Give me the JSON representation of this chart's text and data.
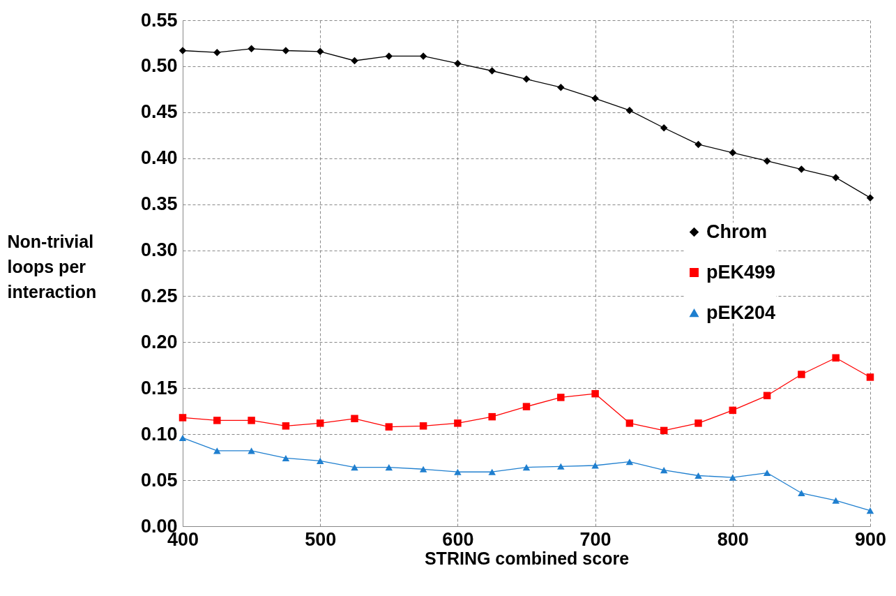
{
  "chart_data": {
    "type": "line",
    "xlabel": "STRING combined score",
    "ylabel": "Non-trivial loops per interaction",
    "x": [
      400,
      425,
      450,
      475,
      500,
      525,
      550,
      575,
      600,
      625,
      650,
      675,
      700,
      725,
      750,
      775,
      800,
      825,
      850,
      875,
      900
    ],
    "series": [
      {
        "name": "Chrom",
        "color": "#000000",
        "marker": "diamond",
        "values": [
          0.517,
          0.515,
          0.519,
          0.517,
          0.516,
          0.506,
          0.511,
          0.511,
          0.503,
          0.495,
          0.486,
          0.477,
          0.465,
          0.452,
          0.433,
          0.415,
          0.406,
          0.397,
          0.388,
          0.379,
          0.357
        ]
      },
      {
        "name": "pEK499",
        "color": "#ff0000",
        "marker": "square",
        "values": [
          0.118,
          0.115,
          0.115,
          0.109,
          0.112,
          0.117,
          0.108,
          0.109,
          0.112,
          0.119,
          0.13,
          0.14,
          0.144,
          0.112,
          0.104,
          0.112,
          0.126,
          0.142,
          0.165,
          0.183,
          0.162
        ]
      },
      {
        "name": "pEK204",
        "color": "#1f7fcf",
        "marker": "triangle",
        "values": [
          0.096,
          0.082,
          0.082,
          0.074,
          0.071,
          0.064,
          0.064,
          0.062,
          0.059,
          0.059,
          0.064,
          0.065,
          0.066,
          0.07,
          0.061,
          0.055,
          0.053,
          0.058,
          0.036,
          0.028,
          0.017
        ]
      }
    ],
    "xlim": [
      400,
      900
    ],
    "xticks": [
      400,
      500,
      600,
      700,
      800,
      900
    ],
    "ylim": [
      0,
      0.55
    ],
    "yticks": [
      {
        "value": 0,
        "label": "0.00"
      },
      {
        "value": 0.05,
        "label": "0.05"
      },
      {
        "value": 0.1,
        "label": "0.10"
      },
      {
        "value": 0.15,
        "label": "0.15"
      },
      {
        "value": 0.2,
        "label": "0.20"
      },
      {
        "value": 0.25,
        "label": "0.25"
      },
      {
        "value": 0.3,
        "label": "0.30"
      },
      {
        "value": 0.35,
        "label": "0.35"
      },
      {
        "value": 0.4,
        "label": "0.40"
      },
      {
        "value": 0.45,
        "label": "0.45"
      },
      {
        "value": 0.5,
        "label": "0.50"
      },
      {
        "value": 0.55,
        "label": "0.55"
      }
    ],
    "grid": true,
    "legend": "right",
    "line_style": "solid"
  }
}
